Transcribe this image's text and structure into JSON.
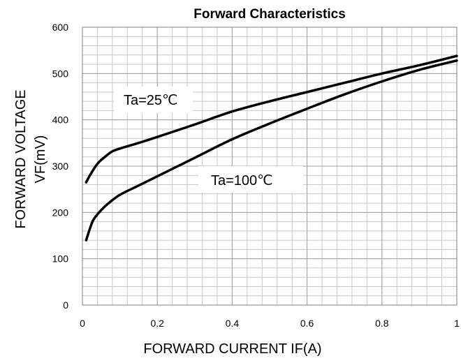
{
  "chart_data": {
    "type": "line",
    "title": "Forward Characteristics",
    "xlabel": "FORWARD CURRENT  IF(A)",
    "ylabel_line1": "FORWARD VOLTAGE",
    "ylabel_line2": "VF(mV)",
    "xlim": [
      0,
      1
    ],
    "ylim": [
      0,
      600
    ],
    "x_ticks": [
      "0",
      "0.2",
      "0.4",
      "0.6",
      "0.8",
      "1"
    ],
    "x_tick_values": [
      0,
      0.2,
      0.4,
      0.6,
      0.8,
      1
    ],
    "y_ticks": [
      "0",
      "100",
      "200",
      "300",
      "400",
      "500",
      "600"
    ],
    "y_tick_values": [
      0,
      100,
      200,
      300,
      400,
      500,
      600
    ],
    "grid": true,
    "grid_minor_x_step": 0.04,
    "grid_minor_y_step": 20,
    "series": [
      {
        "name": "Ta=25℃",
        "x": [
          0.01,
          0.02,
          0.04,
          0.06,
          0.08,
          0.1,
          0.15,
          0.2,
          0.3,
          0.4,
          0.5,
          0.6,
          0.7,
          0.8,
          0.9,
          1.0
        ],
        "y": [
          265,
          280,
          305,
          320,
          332,
          338,
          350,
          363,
          390,
          418,
          440,
          460,
          480,
          500,
          518,
          538
        ]
      },
      {
        "name": "Ta=100℃",
        "x": [
          0.01,
          0.02,
          0.03,
          0.05,
          0.07,
          0.1,
          0.15,
          0.2,
          0.3,
          0.4,
          0.5,
          0.6,
          0.7,
          0.8,
          0.9,
          1.0
        ],
        "y": [
          140,
          165,
          185,
          205,
          220,
          238,
          258,
          278,
          318,
          358,
          392,
          424,
          455,
          483,
          508,
          528
        ]
      }
    ],
    "annotations": [
      "Ta=25℃",
      "Ta=100℃"
    ]
  }
}
